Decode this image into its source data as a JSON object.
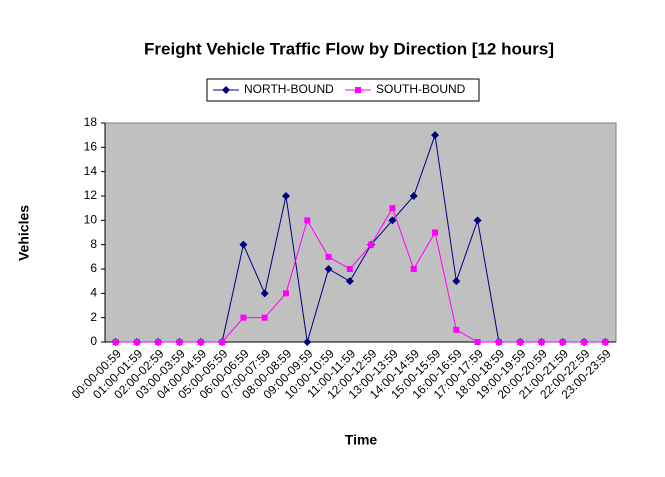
{
  "chart_data": {
    "type": "line",
    "title": "Freight Vehicle Traffic Flow by Direction [12 hours]",
    "x_label": "Time",
    "y_label": "Vehicles",
    "categories": [
      "00:00-00:59",
      "01:00-01:59",
      "02:00-02:59",
      "03:00-03:59",
      "04:00-04:59",
      "05:00-05:59",
      "06:00-06:59",
      "07:00-07:59",
      "08:00-08:59",
      "09:00-09:59",
      "10:00-10:59",
      "11:00-11:59",
      "12:00-12:59",
      "13:00-13:59",
      "14:00-14:59",
      "15:00-15:59",
      "16:00-16:59",
      "17:00-17:59",
      "18:00-18:59",
      "19:00-19:59",
      "20:00-20:59",
      "21:00-21:59",
      "22:00-22:59",
      "23:00-23:59"
    ],
    "series": [
      {
        "name": "NORTH-BOUND",
        "color": "#000080",
        "marker": "diamond",
        "values": [
          0,
          0,
          0,
          0,
          0,
          0,
          8,
          4,
          12,
          0,
          6,
          5,
          8,
          10,
          12,
          17,
          5,
          10,
          0,
          0,
          0,
          0,
          0,
          0
        ]
      },
      {
        "name": "SOUTH-BOUND",
        "color": "#ff00ff",
        "marker": "square",
        "values": [
          0,
          0,
          0,
          0,
          0,
          0,
          2,
          2,
          4,
          10,
          7,
          6,
          8,
          11,
          6,
          9,
          1,
          0,
          0,
          0,
          0,
          0,
          0,
          0
        ]
      }
    ],
    "ylim": [
      0,
      18
    ],
    "yticks": [
      0,
      2,
      4,
      6,
      8,
      10,
      12,
      14,
      16,
      18
    ],
    "grid": false,
    "legend": "top",
    "plot_background": "#c0c0c0"
  }
}
